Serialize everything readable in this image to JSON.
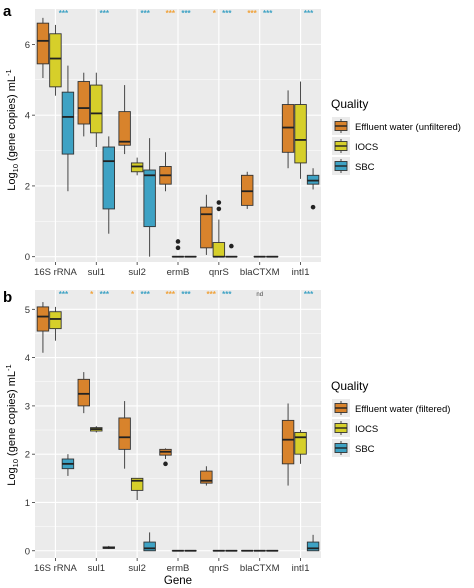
{
  "colors": {
    "effluent": "#d8832c",
    "iocs": "#d6cf2a",
    "sbc": "#3ea2c4",
    "panel_bg": "#ebebeb",
    "grid": "#ffffff",
    "sig_orange": "#f0a23a",
    "sig_blue": "#3ea2c4",
    "sig_nd": "#444444"
  },
  "chart_data": [
    {
      "type": "box",
      "panel_label": "a",
      "categories": [
        "16S rRNA",
        "sul1",
        "sul2",
        "ermB",
        "qnrS",
        "blaCTXM",
        "intI1"
      ],
      "ylabel_main": "Log",
      "ylabel_sub": "10",
      "ylabel_rest": " (gene copies)  mL",
      "ylabel_sup": "-1",
      "ylim": [
        -0.15,
        7.0
      ],
      "yticks": [
        0,
        2,
        4,
        6
      ],
      "grid": true,
      "legend": {
        "title": "Quality",
        "entries": [
          "Effluent water (unfiltered)",
          "IOCS",
          "SBC"
        ],
        "placement": "right"
      },
      "significance": [
        {
          "category": "16S rRNA",
          "orange": "",
          "blue": "***"
        },
        {
          "category": "sul1",
          "orange": "",
          "blue": "***"
        },
        {
          "category": "sul2",
          "orange": "",
          "blue": "***"
        },
        {
          "category": "ermB",
          "orange": "***",
          "blue": "***"
        },
        {
          "category": "qnrS",
          "orange": "*",
          "blue": "***"
        },
        {
          "category": "blaCTXM",
          "orange": "***",
          "blue": "***"
        },
        {
          "category": "intI1",
          "orange": "",
          "blue": "***"
        }
      ],
      "series": [
        {
          "name": "Effluent water (unfiltered)",
          "color_key": "effluent",
          "boxes": [
            {
              "min": 5.05,
              "q1": 5.45,
              "median": 6.1,
              "q3": 6.6,
              "max": 6.75,
              "outliers": []
            },
            {
              "min": 3.4,
              "q1": 3.75,
              "median": 4.2,
              "q3": 4.95,
              "max": 5.2,
              "outliers": []
            },
            {
              "min": 2.9,
              "q1": 3.15,
              "median": 3.25,
              "q3": 4.1,
              "max": 4.85,
              "outliers": []
            },
            {
              "min": 1.85,
              "q1": 2.05,
              "median": 2.3,
              "q3": 2.55,
              "max": 2.95,
              "outliers": []
            },
            {
              "min": 0.05,
              "q1": 0.25,
              "median": 1.2,
              "q3": 1.4,
              "max": 1.75,
              "outliers": []
            },
            {
              "min": 1.35,
              "q1": 1.45,
              "median": 1.85,
              "q3": 2.3,
              "max": 2.4,
              "outliers": []
            },
            {
              "min": 2.5,
              "q1": 2.95,
              "median": 3.65,
              "q3": 4.3,
              "max": 4.7,
              "outliers": []
            }
          ]
        },
        {
          "name": "IOCS",
          "color_key": "iocs",
          "boxes": [
            {
              "min": 4.55,
              "q1": 4.8,
              "median": 5.6,
              "q3": 6.3,
              "max": 6.55,
              "outliers": []
            },
            {
              "min": 3.1,
              "q1": 3.5,
              "median": 4.05,
              "q3": 4.85,
              "max": 5.2,
              "outliers": []
            },
            {
              "min": 2.3,
              "q1": 2.4,
              "median": 2.55,
              "q3": 2.65,
              "max": 2.8,
              "outliers": []
            },
            {
              "min": 0.0,
              "q1": 0.0,
              "median": 0.0,
              "q3": 0.0,
              "max": 0.0,
              "outliers": [
                0.25,
                0.43
              ]
            },
            {
              "min": 0.0,
              "q1": 0.0,
              "median": 0.0,
              "q3": 0.4,
              "max": 1.05,
              "outliers": [
                1.35,
                1.53
              ]
            },
            {
              "min": 0.0,
              "q1": 0.0,
              "median": 0.0,
              "q3": 0.0,
              "max": 0.0,
              "outliers": []
            },
            {
              "min": 2.2,
              "q1": 2.65,
              "median": 3.3,
              "q3": 4.3,
              "max": 4.95,
              "outliers": []
            }
          ]
        },
        {
          "name": "SBC",
          "color_key": "sbc",
          "boxes": [
            {
              "min": 1.85,
              "q1": 2.9,
              "median": 3.95,
              "q3": 4.65,
              "max": 5.4,
              "outliers": []
            },
            {
              "min": 0.65,
              "q1": 1.35,
              "median": 2.7,
              "q3": 3.1,
              "max": 3.4,
              "outliers": []
            },
            {
              "min": 0.0,
              "q1": 0.85,
              "median": 2.3,
              "q3": 2.45,
              "max": 3.35,
              "outliers": []
            },
            {
              "min": 0.0,
              "q1": 0.0,
              "median": 0.0,
              "q3": 0.0,
              "max": 0.0,
              "outliers": []
            },
            {
              "min": 0.0,
              "q1": 0.0,
              "median": 0.0,
              "q3": 0.0,
              "max": 0.0,
              "outliers": [
                0.3
              ]
            },
            {
              "min": 0.0,
              "q1": 0.0,
              "median": 0.0,
              "q3": 0.0,
              "max": 0.0,
              "outliers": []
            },
            {
              "min": 1.9,
              "q1": 2.05,
              "median": 2.15,
              "q3": 2.3,
              "max": 2.5,
              "outliers": [
                1.4
              ]
            }
          ]
        }
      ]
    },
    {
      "type": "box",
      "panel_label": "b",
      "categories": [
        "16S rRNA",
        "sul1",
        "sul2",
        "ermB",
        "qnrS",
        "blaCTXM",
        "intI1"
      ],
      "xlabel": "Gene",
      "ylabel_main": "Log",
      "ylabel_sub": "10",
      "ylabel_rest": " (gene copies)  mL",
      "ylabel_sup": "-1",
      "ylim": [
        -0.15,
        5.4
      ],
      "yticks": [
        0,
        1,
        2,
        3,
        4,
        5
      ],
      "grid": true,
      "legend": {
        "title": "Quality",
        "entries": [
          "Effluent water (filtered)",
          "IOCS",
          "SBC"
        ],
        "placement": "right"
      },
      "significance": [
        {
          "category": "16S rRNA",
          "orange": "",
          "blue": "***",
          "nd": ""
        },
        {
          "category": "sul1",
          "orange": "*",
          "blue": "***",
          "nd": ""
        },
        {
          "category": "sul2",
          "orange": "*",
          "blue": "***",
          "nd": ""
        },
        {
          "category": "ermB",
          "orange": "***",
          "blue": "***",
          "nd": ""
        },
        {
          "category": "qnrS",
          "orange": "***",
          "blue": "***",
          "nd": ""
        },
        {
          "category": "blaCTXM",
          "orange": "",
          "blue": "",
          "nd": "nd"
        },
        {
          "category": "intI1",
          "orange": "",
          "blue": "***",
          "nd": ""
        }
      ],
      "series": [
        {
          "name": "Effluent water (filtered)",
          "color_key": "effluent",
          "boxes": [
            {
              "min": 4.1,
              "q1": 4.55,
              "median": 4.85,
              "q3": 5.05,
              "max": 5.15,
              "outliers": []
            },
            {
              "min": 2.85,
              "q1": 3.0,
              "median": 3.25,
              "q3": 3.55,
              "max": 3.7,
              "outliers": []
            },
            {
              "min": 1.7,
              "q1": 2.1,
              "median": 2.35,
              "q3": 2.75,
              "max": 3.1,
              "outliers": []
            },
            {
              "min": 1.9,
              "q1": 1.98,
              "median": 2.05,
              "q3": 2.1,
              "max": 2.12,
              "outliers": [
                1.8
              ]
            },
            {
              "min": 1.35,
              "q1": 1.4,
              "median": 1.45,
              "q3": 1.65,
              "max": 1.75,
              "outliers": []
            },
            {
              "min": 0.0,
              "q1": 0.0,
              "median": 0.0,
              "q3": 0.0,
              "max": 0.0,
              "outliers": []
            },
            {
              "min": 1.35,
              "q1": 1.8,
              "median": 2.3,
              "q3": 2.7,
              "max": 3.05,
              "outliers": []
            }
          ]
        },
        {
          "name": "IOCS",
          "color_key": "iocs",
          "boxes": [
            {
              "min": 4.35,
              "q1": 4.6,
              "median": 4.8,
              "q3": 4.95,
              "max": 5.05,
              "outliers": []
            },
            {
              "min": 2.45,
              "q1": 2.48,
              "median": 2.52,
              "q3": 2.55,
              "max": 2.58,
              "outliers": []
            },
            {
              "min": 1.05,
              "q1": 1.25,
              "median": 1.45,
              "q3": 1.5,
              "max": 1.5,
              "outliers": []
            },
            {
              "min": 0.0,
              "q1": 0.0,
              "median": 0.0,
              "q3": 0.0,
              "max": 0.0,
              "outliers": []
            },
            {
              "min": 0.0,
              "q1": 0.0,
              "median": 0.0,
              "q3": 0.0,
              "max": 0.0,
              "outliers": []
            },
            {
              "min": 0.0,
              "q1": 0.0,
              "median": 0.0,
              "q3": 0.0,
              "max": 0.0,
              "outliers": []
            },
            {
              "min": 1.8,
              "q1": 2.0,
              "median": 2.35,
              "q3": 2.45,
              "max": 2.5,
              "outliers": []
            }
          ]
        },
        {
          "name": "SBC",
          "color_key": "sbc",
          "boxes": [
            {
              "min": 1.55,
              "q1": 1.7,
              "median": 1.8,
              "q3": 1.9,
              "max": 2.0,
              "outliers": []
            },
            {
              "min": 0.04,
              "q1": 0.05,
              "median": 0.06,
              "q3": 0.08,
              "max": 0.1,
              "outliers": []
            },
            {
              "min": 0.0,
              "q1": 0.0,
              "median": 0.05,
              "q3": 0.18,
              "max": 0.38,
              "outliers": []
            },
            {
              "min": 0.0,
              "q1": 0.0,
              "median": 0.0,
              "q3": 0.0,
              "max": 0.0,
              "outliers": []
            },
            {
              "min": 0.0,
              "q1": 0.0,
              "median": 0.0,
              "q3": 0.0,
              "max": 0.0,
              "outliers": []
            },
            {
              "min": 0.0,
              "q1": 0.0,
              "median": 0.0,
              "q3": 0.0,
              "max": 0.0,
              "outliers": []
            },
            {
              "min": 0.0,
              "q1": 0.0,
              "median": 0.05,
              "q3": 0.18,
              "max": 0.33,
              "outliers": []
            }
          ]
        }
      ]
    }
  ]
}
